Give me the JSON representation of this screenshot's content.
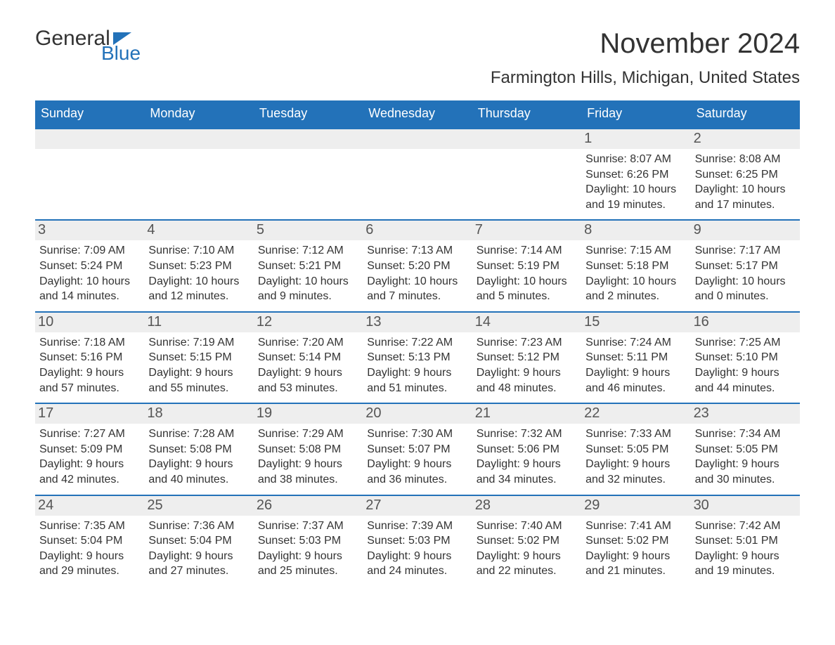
{
  "brand": {
    "name_general": "General",
    "name_blue": "Blue",
    "brand_color": "#2372b9"
  },
  "title": "November 2024",
  "location": "Farmington Hills, Michigan, United States",
  "colors": {
    "header_bg": "#2372b9",
    "header_text": "#ffffff",
    "row_border": "#2372b9",
    "daynum_bg": "#eeeeee",
    "text": "#333333",
    "page_bg": "#ffffff"
  },
  "days_of_week": [
    "Sunday",
    "Monday",
    "Tuesday",
    "Wednesday",
    "Thursday",
    "Friday",
    "Saturday"
  ],
  "weeks": [
    [
      null,
      null,
      null,
      null,
      null,
      {
        "n": "1",
        "sunrise": "Sunrise: 8:07 AM",
        "sunset": "Sunset: 6:26 PM",
        "daylight": "Daylight: 10 hours and 19 minutes."
      },
      {
        "n": "2",
        "sunrise": "Sunrise: 8:08 AM",
        "sunset": "Sunset: 6:25 PM",
        "daylight": "Daylight: 10 hours and 17 minutes."
      }
    ],
    [
      {
        "n": "3",
        "sunrise": "Sunrise: 7:09 AM",
        "sunset": "Sunset: 5:24 PM",
        "daylight": "Daylight: 10 hours and 14 minutes."
      },
      {
        "n": "4",
        "sunrise": "Sunrise: 7:10 AM",
        "sunset": "Sunset: 5:23 PM",
        "daylight": "Daylight: 10 hours and 12 minutes."
      },
      {
        "n": "5",
        "sunrise": "Sunrise: 7:12 AM",
        "sunset": "Sunset: 5:21 PM",
        "daylight": "Daylight: 10 hours and 9 minutes."
      },
      {
        "n": "6",
        "sunrise": "Sunrise: 7:13 AM",
        "sunset": "Sunset: 5:20 PM",
        "daylight": "Daylight: 10 hours and 7 minutes."
      },
      {
        "n": "7",
        "sunrise": "Sunrise: 7:14 AM",
        "sunset": "Sunset: 5:19 PM",
        "daylight": "Daylight: 10 hours and 5 minutes."
      },
      {
        "n": "8",
        "sunrise": "Sunrise: 7:15 AM",
        "sunset": "Sunset: 5:18 PM",
        "daylight": "Daylight: 10 hours and 2 minutes."
      },
      {
        "n": "9",
        "sunrise": "Sunrise: 7:17 AM",
        "sunset": "Sunset: 5:17 PM",
        "daylight": "Daylight: 10 hours and 0 minutes."
      }
    ],
    [
      {
        "n": "10",
        "sunrise": "Sunrise: 7:18 AM",
        "sunset": "Sunset: 5:16 PM",
        "daylight": "Daylight: 9 hours and 57 minutes."
      },
      {
        "n": "11",
        "sunrise": "Sunrise: 7:19 AM",
        "sunset": "Sunset: 5:15 PM",
        "daylight": "Daylight: 9 hours and 55 minutes."
      },
      {
        "n": "12",
        "sunrise": "Sunrise: 7:20 AM",
        "sunset": "Sunset: 5:14 PM",
        "daylight": "Daylight: 9 hours and 53 minutes."
      },
      {
        "n": "13",
        "sunrise": "Sunrise: 7:22 AM",
        "sunset": "Sunset: 5:13 PM",
        "daylight": "Daylight: 9 hours and 51 minutes."
      },
      {
        "n": "14",
        "sunrise": "Sunrise: 7:23 AM",
        "sunset": "Sunset: 5:12 PM",
        "daylight": "Daylight: 9 hours and 48 minutes."
      },
      {
        "n": "15",
        "sunrise": "Sunrise: 7:24 AM",
        "sunset": "Sunset: 5:11 PM",
        "daylight": "Daylight: 9 hours and 46 minutes."
      },
      {
        "n": "16",
        "sunrise": "Sunrise: 7:25 AM",
        "sunset": "Sunset: 5:10 PM",
        "daylight": "Daylight: 9 hours and 44 minutes."
      }
    ],
    [
      {
        "n": "17",
        "sunrise": "Sunrise: 7:27 AM",
        "sunset": "Sunset: 5:09 PM",
        "daylight": "Daylight: 9 hours and 42 minutes."
      },
      {
        "n": "18",
        "sunrise": "Sunrise: 7:28 AM",
        "sunset": "Sunset: 5:08 PM",
        "daylight": "Daylight: 9 hours and 40 minutes."
      },
      {
        "n": "19",
        "sunrise": "Sunrise: 7:29 AM",
        "sunset": "Sunset: 5:08 PM",
        "daylight": "Daylight: 9 hours and 38 minutes."
      },
      {
        "n": "20",
        "sunrise": "Sunrise: 7:30 AM",
        "sunset": "Sunset: 5:07 PM",
        "daylight": "Daylight: 9 hours and 36 minutes."
      },
      {
        "n": "21",
        "sunrise": "Sunrise: 7:32 AM",
        "sunset": "Sunset: 5:06 PM",
        "daylight": "Daylight: 9 hours and 34 minutes."
      },
      {
        "n": "22",
        "sunrise": "Sunrise: 7:33 AM",
        "sunset": "Sunset: 5:05 PM",
        "daylight": "Daylight: 9 hours and 32 minutes."
      },
      {
        "n": "23",
        "sunrise": "Sunrise: 7:34 AM",
        "sunset": "Sunset: 5:05 PM",
        "daylight": "Daylight: 9 hours and 30 minutes."
      }
    ],
    [
      {
        "n": "24",
        "sunrise": "Sunrise: 7:35 AM",
        "sunset": "Sunset: 5:04 PM",
        "daylight": "Daylight: 9 hours and 29 minutes."
      },
      {
        "n": "25",
        "sunrise": "Sunrise: 7:36 AM",
        "sunset": "Sunset: 5:04 PM",
        "daylight": "Daylight: 9 hours and 27 minutes."
      },
      {
        "n": "26",
        "sunrise": "Sunrise: 7:37 AM",
        "sunset": "Sunset: 5:03 PM",
        "daylight": "Daylight: 9 hours and 25 minutes."
      },
      {
        "n": "27",
        "sunrise": "Sunrise: 7:39 AM",
        "sunset": "Sunset: 5:03 PM",
        "daylight": "Daylight: 9 hours and 24 minutes."
      },
      {
        "n": "28",
        "sunrise": "Sunrise: 7:40 AM",
        "sunset": "Sunset: 5:02 PM",
        "daylight": "Daylight: 9 hours and 22 minutes."
      },
      {
        "n": "29",
        "sunrise": "Sunrise: 7:41 AM",
        "sunset": "Sunset: 5:02 PM",
        "daylight": "Daylight: 9 hours and 21 minutes."
      },
      {
        "n": "30",
        "sunrise": "Sunrise: 7:42 AM",
        "sunset": "Sunset: 5:01 PM",
        "daylight": "Daylight: 9 hours and 19 minutes."
      }
    ]
  ]
}
